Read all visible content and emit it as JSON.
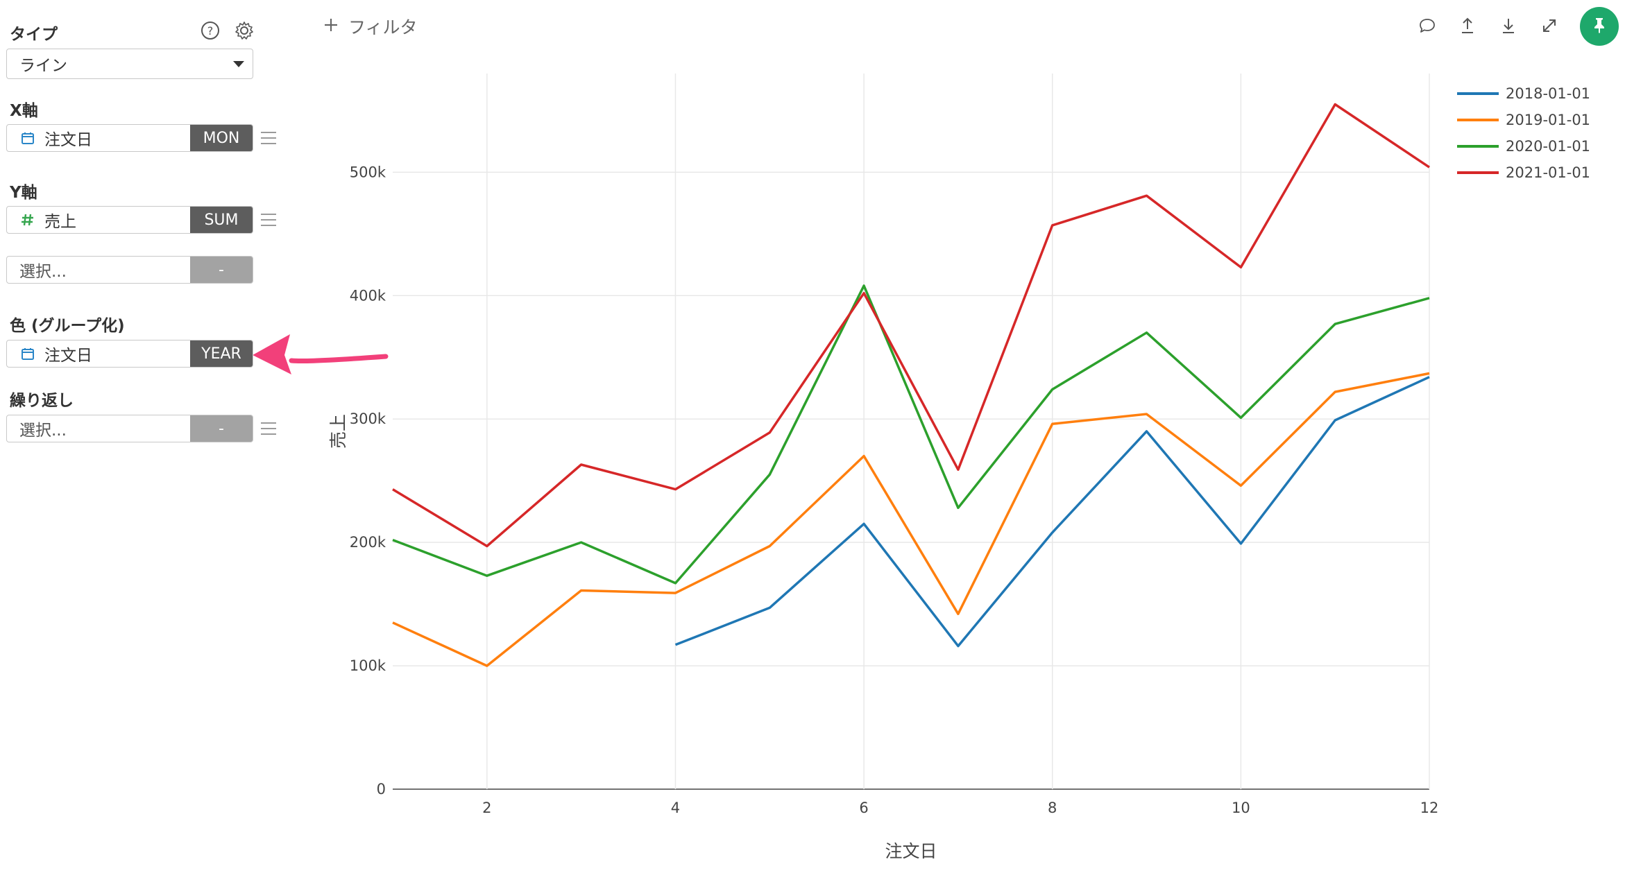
{
  "sidebar": {
    "type_label": "タイプ",
    "type_value": "ライン",
    "x_axis_label": "X軸",
    "x_field": "注文日",
    "x_agg": "MON",
    "y_axis_label": "Y軸",
    "y_field": "売上",
    "y_agg": "SUM",
    "y2_placeholder": "選択...",
    "y2_agg": "-",
    "color_label": "色 (グループ化)",
    "color_field": "注文日",
    "color_agg": "YEAR",
    "repeat_label": "繰り返し",
    "repeat_placeholder": "選択...",
    "repeat_agg": "-"
  },
  "toolbar": {
    "filter_label": "フィルタ",
    "icons": [
      "comment-icon",
      "upload-icon",
      "download-icon",
      "expand-icon",
      "pin-icon"
    ],
    "pin_color": "#1ea86b"
  },
  "annotation": {
    "arrow_color": "#f2407a"
  },
  "chart_data": {
    "type": "line",
    "title": "",
    "xlabel": "注文日",
    "ylabel": "売上",
    "xlim": [
      1,
      12
    ],
    "ylim": [
      0,
      580000
    ],
    "x_ticks": [
      2,
      4,
      6,
      8,
      10,
      12
    ],
    "y_ticks": [
      0,
      100000,
      200000,
      300000,
      400000,
      500000
    ],
    "y_tick_labels": [
      "0",
      "100k",
      "200k",
      "300k",
      "400k",
      "500k"
    ],
    "grid": true,
    "legend_position": "top-right",
    "series": [
      {
        "name": "2018-01-01",
        "color": "#1f77b4",
        "x": [
          4,
          5,
          6,
          7,
          8,
          9,
          10,
          11,
          12
        ],
        "values": [
          117000,
          147000,
          215000,
          116000,
          208000,
          290000,
          199000,
          299000,
          334000
        ]
      },
      {
        "name": "2019-01-01",
        "color": "#ff7f0e",
        "x": [
          1,
          2,
          3,
          4,
          5,
          6,
          7,
          8,
          9,
          10,
          11,
          12
        ],
        "values": [
          135000,
          100000,
          161000,
          159000,
          197000,
          270000,
          142000,
          296000,
          304000,
          246000,
          322000,
          337000
        ]
      },
      {
        "name": "2020-01-01",
        "color": "#2ca02c",
        "x": [
          1,
          2,
          3,
          4,
          5,
          6,
          7,
          8,
          9,
          10,
          11,
          12
        ],
        "values": [
          202000,
          173000,
          200000,
          167000,
          255000,
          408000,
          228000,
          324000,
          370000,
          301000,
          377000,
          398000
        ]
      },
      {
        "name": "2021-01-01",
        "color": "#d62728",
        "x": [
          1,
          2,
          3,
          4,
          5,
          6,
          7,
          8,
          9,
          10,
          11,
          12
        ],
        "values": [
          243000,
          197000,
          263000,
          243000,
          289000,
          402000,
          259000,
          457000,
          481000,
          423000,
          555000,
          504000
        ]
      }
    ]
  }
}
